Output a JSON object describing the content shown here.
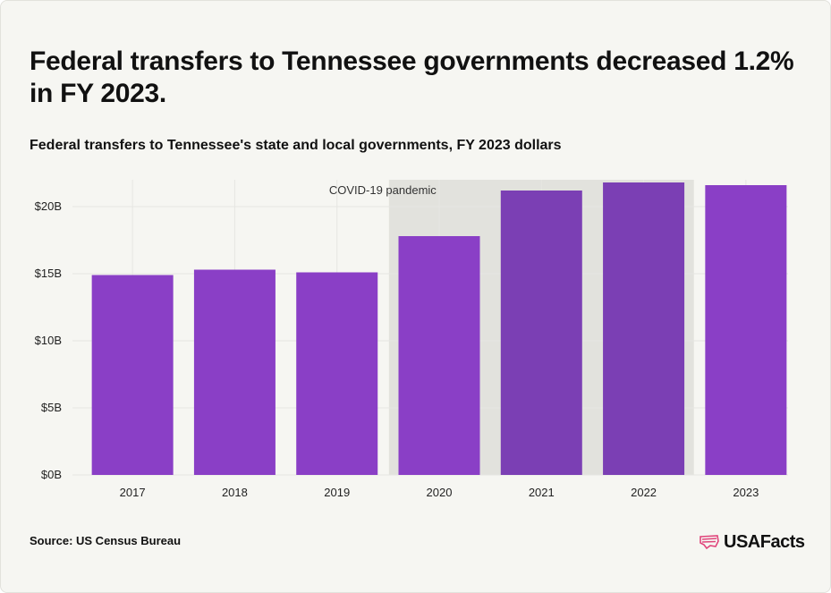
{
  "title": "Federal transfers to Tennessee governments decreased 1.2% in FY 2023.",
  "subtitle": "Federal transfers to Tennessee's state and local governments, FY 2023 dollars",
  "source": "Source: US Census Bureau",
  "brand": "USAFacts",
  "colors": {
    "bar": "#8a3fc6",
    "bar_highlight": "#7b3fb4",
    "band": "#e2e2dd",
    "grid": "#e6e6e2",
    "logo_accent": "#e0457b"
  },
  "chart_data": {
    "type": "bar",
    "categories": [
      "2017",
      "2018",
      "2019",
      "2020",
      "2021",
      "2022",
      "2023"
    ],
    "values": [
      14.9,
      15.3,
      15.1,
      17.8,
      21.2,
      21.8,
      21.6
    ],
    "ylim": [
      0,
      22
    ],
    "yticks": [
      0,
      5,
      10,
      15,
      20
    ],
    "ytick_labels": [
      "$0B",
      "$5B",
      "$10B",
      "$15B",
      "$20B"
    ],
    "grid": true,
    "annotation": {
      "text": "COVID-19 pandemic",
      "from_category": "2020",
      "to_category": "2022"
    }
  }
}
